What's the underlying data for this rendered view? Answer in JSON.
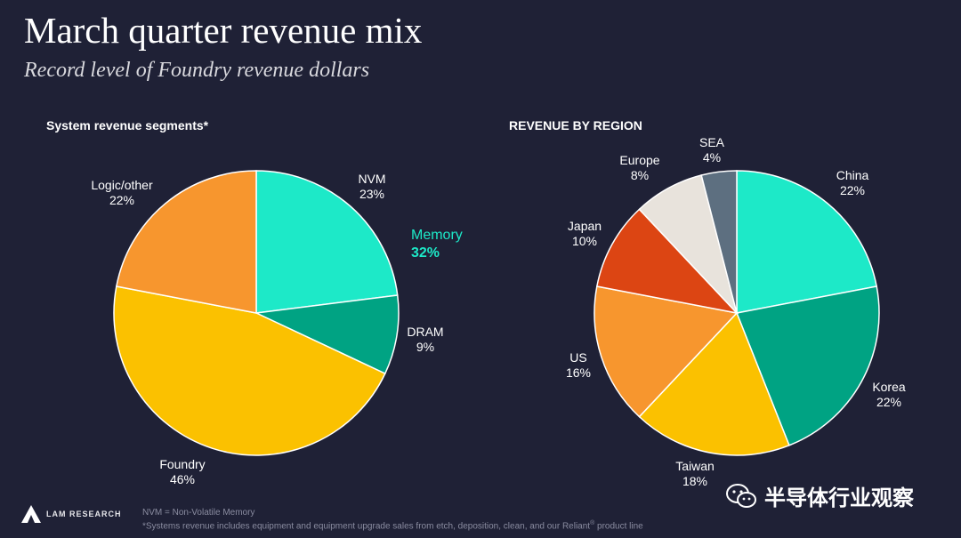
{
  "title": "March quarter revenue mix",
  "subtitle": "Record level of Foundry revenue dollars",
  "colors": {
    "teal": "#1de9c8",
    "green": "#00a383",
    "yellow": "#fbc100",
    "orange": "#f7962e",
    "red": "#dc4513",
    "cream": "#e8e3dc",
    "slate": "#5d6f80",
    "text": "#ffffff",
    "dark": "#1f2136"
  },
  "chart_data": [
    {
      "type": "pie",
      "title": "System revenue segments*",
      "slices": [
        {
          "label": "NVM",
          "value": 23,
          "text": "23%",
          "color": "#1de9c8"
        },
        {
          "label": "DRAM",
          "value": 9,
          "text": "9%",
          "color": "#00a383"
        },
        {
          "label": "Foundry",
          "value": 46,
          "text": "46%",
          "color": "#fbc100"
        },
        {
          "label": "Logic/other",
          "value": 22,
          "text": "22%",
          "color": "#f7962e"
        }
      ],
      "annotation": {
        "label": "Memory",
        "value": "32%",
        "color": "#1de9c8"
      }
    },
    {
      "type": "pie",
      "title": "REVENUE BY REGION",
      "slices": [
        {
          "label": "China",
          "value": 22,
          "text": "22%",
          "color": "#1de9c8"
        },
        {
          "label": "Korea",
          "value": 22,
          "text": "22%",
          "color": "#00a383"
        },
        {
          "label": "Taiwan",
          "value": 18,
          "text": "18%",
          "color": "#fbc100"
        },
        {
          "label": "US",
          "value": 16,
          "text": "16%",
          "color": "#f7962e"
        },
        {
          "label": "Japan",
          "value": 10,
          "text": "10%",
          "color": "#dc4513"
        },
        {
          "label": "Europe",
          "value": 8,
          "text": "8%",
          "color": "#e8e3dc"
        },
        {
          "label": "SEA",
          "value": 4,
          "text": "4%",
          "color": "#5d6f80"
        }
      ]
    }
  ],
  "footnotes": {
    "nvm": "NVM = Non-Volatile Memory",
    "systems": "*Systems revenue includes equipment and equipment upgrade sales from etch, deposition, clean, and our Reliant",
    "reg": "®",
    "systems_tail": " product line"
  },
  "logo": {
    "text": "LAM RESEARCH",
    "icon": "lam-logo-icon"
  },
  "watermark": {
    "text": "半导体行业观察",
    "icon": "wechat-icon"
  }
}
